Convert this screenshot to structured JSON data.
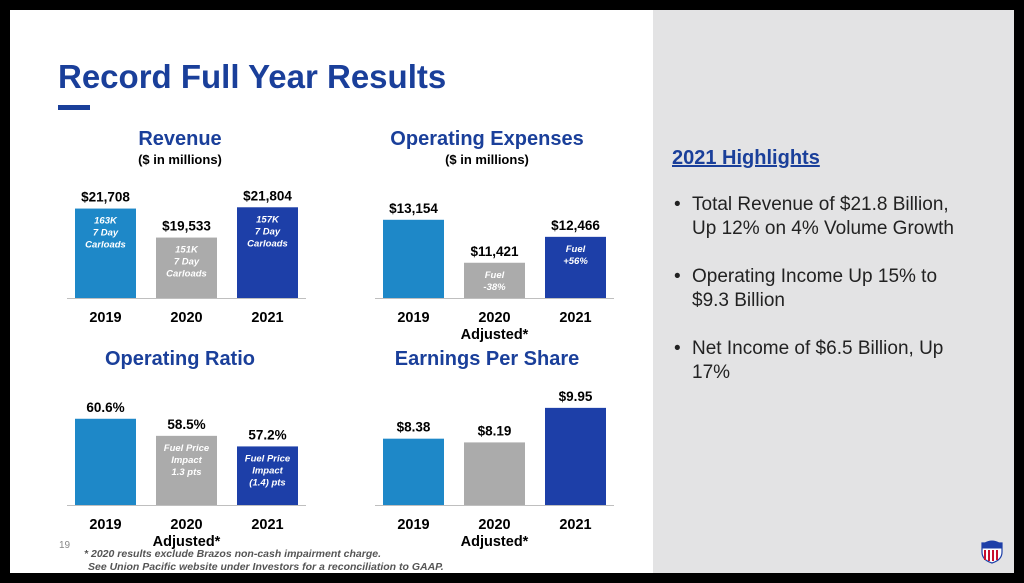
{
  "slide": {
    "title": "Record Full Year Results",
    "page_number": "19",
    "footnote_line1": "* 2020 results exclude Brazos non-cash impairment charge.",
    "footnote_line2": "See Union Pacific website under Investors for a reconciliation to GAAP."
  },
  "highlights": {
    "title": "2021 Highlights",
    "items": [
      "Total Revenue of $21.8 Billion, Up 12% on 4% Volume Growth",
      "Operating Income Up 15% to $9.3 Billion",
      "Net Income of $6.5 Billion, Up 17%"
    ]
  },
  "colors": {
    "accent": "#1a3f9a",
    "bar_2019": "#1e88c8",
    "bar_2020": "#ababab",
    "bar_2021": "#1d3fa8",
    "panel": "#e3e3e4"
  },
  "chart_data": [
    {
      "type": "bar",
      "title": "Revenue",
      "subtitle": "($ in millions)",
      "categories": [
        "2019",
        "2020",
        "2021"
      ],
      "category_sublabels": [
        "",
        "",
        ""
      ],
      "values": [
        21708,
        19533,
        21804
      ],
      "value_labels": [
        "$21,708",
        "$19,533",
        "$21,804"
      ],
      "bar_annotations": [
        [
          "163K",
          "7 Day",
          "Carloads"
        ],
        [
          "151K",
          "7 Day",
          "Carloads"
        ],
        [
          "157K",
          "7 Day",
          "Carloads"
        ]
      ],
      "ylim": [
        15000,
        22500
      ]
    },
    {
      "type": "bar",
      "title": "Operating Expenses",
      "subtitle": "($ in millions)",
      "categories": [
        "2019",
        "2020",
        "2021"
      ],
      "category_sublabels": [
        "",
        "Adjusted*",
        ""
      ],
      "values": [
        13154,
        11421,
        12466
      ],
      "value_labels": [
        "$13,154",
        "$11,421",
        "$12,466"
      ],
      "bar_annotations": [
        [],
        [
          "Fuel",
          "-38%"
        ],
        [
          "Fuel",
          "+56%"
        ]
      ],
      "ylim": [
        10000,
        13750
      ]
    },
    {
      "type": "bar",
      "title": "Operating Ratio",
      "subtitle": "",
      "categories": [
        "2019",
        "2020",
        "2021"
      ],
      "category_sublabels": [
        "",
        "Adjusted*",
        ""
      ],
      "values": [
        60.6,
        58.5,
        57.2
      ],
      "value_labels": [
        "60.6%",
        "58.5%",
        "57.2%"
      ],
      "bar_annotations": [
        [],
        [
          "Fuel Price",
          "Impact",
          "1.3 pts"
        ],
        [
          "Fuel Price",
          "Impact",
          "(1.4) pts"
        ]
      ],
      "ylim": [
        50,
        61.8
      ]
    },
    {
      "type": "bar",
      "title": "Earnings Per Share",
      "subtitle": "",
      "categories": [
        "2019",
        "2020",
        "2021"
      ],
      "category_sublabels": [
        "",
        "Adjusted*",
        ""
      ],
      "values": [
        8.38,
        8.19,
        9.95
      ],
      "value_labels": [
        "$8.38",
        "$8.19",
        "$9.95"
      ],
      "bar_annotations": [
        [],
        [],
        []
      ],
      "ylim": [
        5,
        10.3
      ]
    }
  ]
}
